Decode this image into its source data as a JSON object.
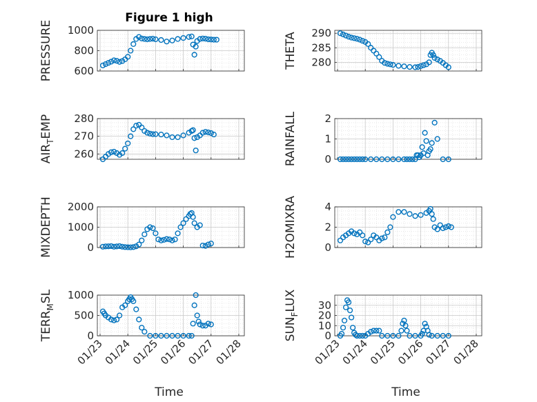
{
  "figure": {
    "title": "Figure 1 high",
    "marker_color": "#0072BD"
  },
  "chart_data": [
    {
      "type": "scatter",
      "marker": "circle-open",
      "title": "Figure 1 high",
      "ylabel": "PRESSURE",
      "ylim": [
        600,
        1000
      ],
      "yticks": [
        "600",
        "800",
        "1000"
      ],
      "x_days": [
        23.1,
        23.2,
        23.3,
        23.4,
        23.5,
        23.6,
        23.7,
        23.8,
        23.9,
        24.0,
        24.1,
        24.2,
        24.3,
        24.4,
        24.5,
        24.6,
        24.7,
        24.8,
        24.9,
        25.0,
        25.2,
        25.4,
        25.6,
        25.8,
        26.0,
        26.2,
        26.3,
        26.35,
        26.4,
        26.45,
        26.5,
        26.6,
        26.7,
        26.8,
        26.9,
        27.0,
        27.1,
        27.2
      ],
      "y": [
        655,
        668,
        680,
        692,
        705,
        700,
        690,
        698,
        715,
        740,
        800,
        865,
        915,
        935,
        920,
        915,
        912,
        915,
        918,
        912,
        905,
        890,
        900,
        915,
        925,
        935,
        940,
        860,
        760,
        840,
        895,
        915,
        920,
        918,
        912,
        910,
        908,
        908
      ]
    },
    {
      "type": "scatter",
      "marker": "circle-open",
      "ylabel": "THETA",
      "ylim": [
        277,
        291
      ],
      "yticks": [
        "280",
        "285",
        "290"
      ],
      "x_days": [
        23.1,
        23.2,
        23.3,
        23.4,
        23.5,
        23.6,
        23.7,
        23.8,
        23.9,
        24.0,
        24.1,
        24.2,
        24.3,
        24.4,
        24.5,
        24.6,
        24.7,
        24.8,
        24.9,
        25.0,
        25.2,
        25.4,
        25.6,
        25.8,
        25.9,
        26.0,
        26.1,
        26.2,
        26.3,
        26.35,
        26.4,
        26.45,
        26.5,
        26.6,
        26.7,
        26.8,
        26.9,
        27.0
      ],
      "y": [
        290,
        289.6,
        289.2,
        288.8,
        288.5,
        288.3,
        288.1,
        287.8,
        287.4,
        287,
        286.3,
        285,
        284,
        283,
        281.8,
        280.5,
        279.8,
        279.5,
        279.3,
        279.1,
        278.8,
        278.6,
        278.4,
        278.3,
        278.4,
        278.7,
        279,
        279.3,
        280,
        282.5,
        283.3,
        282.5,
        281.5,
        281,
        280.5,
        279.8,
        279,
        278.3
      ]
    },
    {
      "type": "scatter",
      "marker": "circle-open",
      "ylabel_main": "AIR",
      "ylabel_sub": "T",
      "ylabel_rest": "EMP",
      "ylim": [
        257,
        280
      ],
      "yticks": [
        "260",
        "270",
        "280"
      ],
      "x_days": [
        23.1,
        23.2,
        23.3,
        23.4,
        23.5,
        23.6,
        23.7,
        23.8,
        23.9,
        24.0,
        24.1,
        24.2,
        24.3,
        24.4,
        24.5,
        24.6,
        24.7,
        24.8,
        24.9,
        25.0,
        25.2,
        25.4,
        25.6,
        25.8,
        26.0,
        26.2,
        26.3,
        26.35,
        26.4,
        26.45,
        26.5,
        26.6,
        26.7,
        26.8,
        26.9,
        27.0,
        27.1
      ],
      "y": [
        257,
        258.5,
        260,
        261,
        261.3,
        260.5,
        259.5,
        260.5,
        263,
        266,
        270,
        274,
        276,
        276.5,
        275,
        273,
        272,
        271.5,
        271.2,
        271.2,
        271,
        270.5,
        269.5,
        269.5,
        270.5,
        272,
        273,
        273.5,
        269,
        262,
        269.5,
        270.5,
        272,
        272.5,
        272.2,
        271.8,
        271
      ]
    },
    {
      "type": "scatter",
      "marker": "circle-open",
      "ylabel": "RAINFALL",
      "ylim": [
        0,
        2
      ],
      "yticks": [
        "0",
        "1",
        "2"
      ],
      "x_days": [
        23.1,
        23.2,
        23.3,
        23.4,
        23.5,
        23.6,
        23.7,
        23.8,
        23.9,
        24.0,
        24.2,
        24.4,
        24.6,
        24.8,
        25.0,
        25.2,
        25.4,
        25.5,
        25.6,
        25.7,
        25.8,
        25.85,
        25.9,
        25.95,
        26.0,
        26.05,
        26.1,
        26.15,
        26.2,
        26.25,
        26.3,
        26.35,
        26.4,
        26.5,
        26.6,
        26.8,
        27.0
      ],
      "y": [
        0,
        0,
        0,
        0,
        0,
        0,
        0,
        0,
        0,
        0,
        0,
        0,
        0,
        0,
        0,
        0,
        0,
        0,
        0,
        0,
        0,
        0.2,
        0.2,
        0.1,
        0.2,
        0.6,
        0.3,
        1.3,
        0.9,
        0.2,
        0.4,
        0.5,
        0.8,
        1.8,
        1.0,
        0,
        0
      ]
    },
    {
      "type": "scatter",
      "marker": "circle-open",
      "ylabel": "MIXDEPTH",
      "ylim": [
        0,
        2000
      ],
      "yticks": [
        "0",
        "1000",
        "2000"
      ],
      "x_days": [
        23.1,
        23.2,
        23.3,
        23.4,
        23.5,
        23.6,
        23.7,
        23.8,
        23.9,
        24.0,
        24.1,
        24.2,
        24.3,
        24.4,
        24.5,
        24.6,
        24.7,
        24.8,
        24.9,
        25.0,
        25.1,
        25.2,
        25.3,
        25.4,
        25.5,
        25.6,
        25.7,
        25.8,
        25.9,
        26.0,
        26.1,
        26.2,
        26.25,
        26.3,
        26.35,
        26.4,
        26.5,
        26.6,
        26.7,
        26.8,
        26.9,
        27.0
      ],
      "y": [
        40,
        55,
        60,
        70,
        40,
        55,
        70,
        40,
        20,
        15,
        10,
        20,
        60,
        150,
        350,
        650,
        900,
        1000,
        950,
        700,
        400,
        350,
        380,
        420,
        400,
        350,
        400,
        700,
        1000,
        1200,
        1400,
        1550,
        1650,
        1700,
        1500,
        1200,
        1000,
        1100,
        100,
        80,
        150,
        200
      ]
    },
    {
      "type": "scatter",
      "marker": "circle-open",
      "ylabel": "H2OMIXRA",
      "ylim": [
        0,
        4
      ],
      "yticks": [
        "0",
        "2",
        "4"
      ],
      "x_days": [
        23.1,
        23.2,
        23.3,
        23.4,
        23.5,
        23.6,
        23.7,
        23.8,
        23.9,
        24.0,
        24.1,
        24.2,
        24.3,
        24.4,
        24.5,
        24.6,
        24.7,
        24.8,
        24.9,
        25.0,
        25.2,
        25.4,
        25.6,
        25.8,
        26.0,
        26.2,
        26.3,
        26.35,
        26.4,
        26.45,
        26.5,
        26.6,
        26.7,
        26.8,
        26.9,
        27.0,
        27.1
      ],
      "y": [
        0.7,
        1.0,
        1.2,
        1.4,
        1.6,
        1.4,
        1.3,
        1.5,
        1.2,
        0.6,
        0.5,
        0.8,
        1.2,
        1.0,
        0.7,
        0.9,
        1.0,
        1.5,
        2.0,
        3.0,
        3.5,
        3.5,
        3.3,
        3.1,
        3.2,
        3.4,
        3.6,
        3.8,
        3.3,
        2.8,
        2.0,
        1.8,
        2.2,
        1.9,
        2.0,
        2.1,
        2.0
      ]
    },
    {
      "type": "scatter",
      "marker": "circle-open",
      "ylabel_main": "TERR",
      "ylabel_sub": "M",
      "ylabel_rest": "SL",
      "ylim": [
        0,
        1000
      ],
      "yticks": [
        "0",
        "500",
        "1000"
      ],
      "x_days": [
        23.1,
        23.15,
        23.2,
        23.3,
        23.4,
        23.5,
        23.6,
        23.7,
        23.8,
        23.9,
        24.0,
        24.05,
        24.1,
        24.15,
        24.2,
        24.3,
        24.4,
        24.5,
        24.6,
        24.8,
        25.0,
        25.2,
        25.4,
        25.6,
        25.8,
        26.0,
        26.2,
        26.3,
        26.35,
        26.4,
        26.45,
        26.5,
        26.55,
        26.6,
        26.7,
        26.8,
        26.9,
        27.0
      ],
      "y": [
        600,
        550,
        500,
        450,
        400,
        380,
        400,
        500,
        700,
        750,
        850,
        900,
        950,
        900,
        850,
        650,
        400,
        200,
        100,
        0,
        0,
        0,
        0,
        0,
        0,
        0,
        0,
        0,
        300,
        750,
        1000,
        500,
        350,
        280,
        250,
        250,
        300,
        280
      ]
    },
    {
      "type": "scatter",
      "marker": "circle-open",
      "ylabel_main": "SUN",
      "ylabel_sub": "F",
      "ylabel_rest": "LUX",
      "ylim": [
        0,
        40
      ],
      "yticks": [
        "0",
        "10",
        "20",
        "30"
      ],
      "x_days": [
        23.1,
        23.15,
        23.2,
        23.25,
        23.3,
        23.35,
        23.4,
        23.45,
        23.5,
        23.55,
        23.6,
        23.65,
        23.7,
        23.8,
        23.9,
        24.0,
        24.1,
        24.2,
        24.3,
        24.4,
        24.5,
        24.6,
        24.8,
        25.0,
        25.2,
        25.3,
        25.35,
        25.4,
        25.45,
        25.5,
        25.6,
        25.8,
        26.0,
        26.05,
        26.1,
        26.15,
        26.2,
        26.25,
        26.3,
        26.4,
        26.6,
        26.8,
        27.0
      ],
      "y": [
        0,
        2,
        8,
        15,
        28,
        35,
        33,
        25,
        18,
        8,
        3,
        1,
        0,
        0,
        0,
        0,
        2,
        4,
        5,
        5,
        5,
        0,
        0,
        0,
        0,
        5,
        12,
        15,
        10,
        5,
        0,
        0,
        0,
        2,
        5,
        12,
        9,
        5,
        1,
        0,
        0,
        0,
        0
      ]
    }
  ],
  "x_axis": {
    "label": "Time",
    "lim": [
      22.9,
      28.2
    ],
    "tick_values": [
      23,
      24,
      25,
      26,
      27,
      28
    ],
    "tick_labels": [
      "01/23",
      "01/24",
      "01/25",
      "01/26",
      "01/27",
      "01/28"
    ]
  }
}
